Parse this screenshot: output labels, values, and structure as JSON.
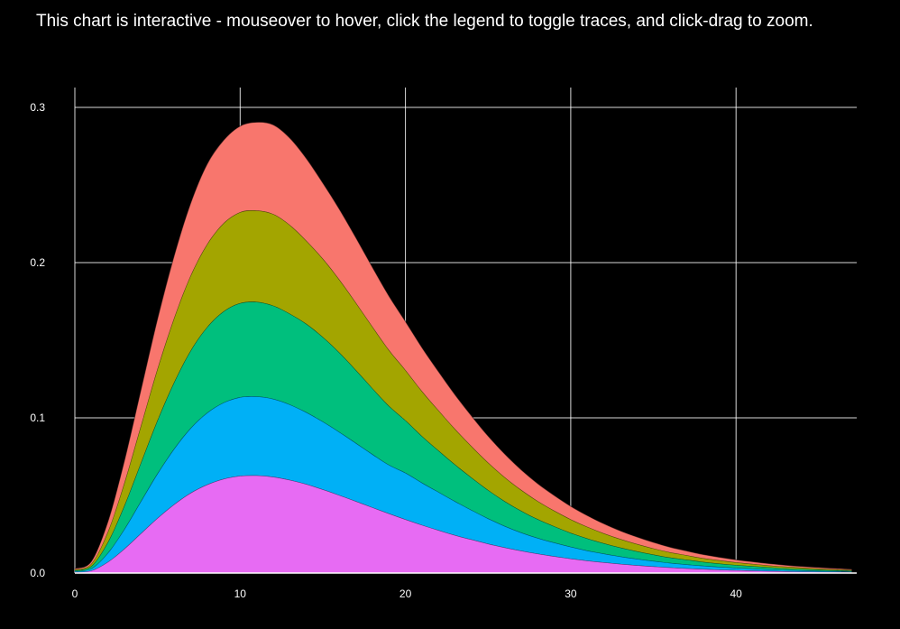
{
  "chart_data": {
    "type": "area",
    "mode": "stacked",
    "title": "This chart is interactive - mouseover to hover, click the legend to toggle traces, and click-drag to zoom.",
    "xlabel": "",
    "ylabel": "",
    "legend": "hidden",
    "grid": true,
    "background": "#000000",
    "grid_color": "#ffffff",
    "text_color": "#ffffff",
    "outline_color": "rgba(0,0,0,0.55)",
    "xlim": [
      0,
      47.3
    ],
    "ylim": [
      0,
      0.3128
    ],
    "x_ticks": [
      0,
      10,
      20,
      30,
      40
    ],
    "x_tick_labels": [
      "0",
      "10",
      "20",
      "30",
      "40"
    ],
    "y_ticks": [
      0,
      0.1,
      0.2,
      0.3
    ],
    "y_tick_labels": [
      "0.0",
      "0.1",
      "0.2",
      "0.3"
    ],
    "x": [
      0,
      1,
      2,
      3,
      4,
      5,
      6,
      7,
      8,
      9,
      10,
      11,
      12,
      13,
      14,
      15,
      16,
      17,
      18,
      19,
      20,
      21,
      22,
      23,
      24,
      25,
      26,
      27,
      28,
      29,
      30,
      31,
      32,
      33,
      34,
      35,
      36,
      37,
      38,
      39,
      40,
      41,
      42,
      43,
      44,
      45,
      46,
      47
    ],
    "series": [
      {
        "name": "violet",
        "color": "#E76BF3",
        "values": [
          0.0006,
          0.0016,
          0.0072,
          0.0157,
          0.0256,
          0.0354,
          0.0442,
          0.0516,
          0.057,
          0.0607,
          0.0626,
          0.0629,
          0.062,
          0.06,
          0.0573,
          0.0539,
          0.0502,
          0.0463,
          0.0423,
          0.0384,
          0.0346,
          0.031,
          0.0276,
          0.0244,
          0.0216,
          0.0189,
          0.0165,
          0.0144,
          0.0125,
          0.0108,
          0.0093,
          0.008,
          0.0069,
          0.0059,
          0.005,
          0.0043,
          0.0036,
          0.0031,
          0.0026,
          0.0022,
          0.0019,
          0.0016,
          0.0013,
          0.0011,
          0.0009,
          0.0008,
          0.0007,
          0.0006
        ]
      },
      {
        "name": "blue",
        "color": "#00B0F6",
        "values": [
          0.0005,
          0.0013,
          0.0058,
          0.0127,
          0.0207,
          0.0287,
          0.0358,
          0.0417,
          0.0462,
          0.0491,
          0.0507,
          0.0509,
          0.0502,
          0.0486,
          0.0463,
          0.0437,
          0.0407,
          0.0375,
          0.0343,
          0.0313,
          0.03,
          0.0272,
          0.0246,
          0.0218,
          0.019,
          0.0163,
          0.0138,
          0.0117,
          0.0101,
          0.0088,
          0.0076,
          0.0065,
          0.0056,
          0.0048,
          0.0041,
          0.0035,
          0.0029,
          0.0025,
          0.0021,
          0.0018,
          0.0015,
          0.0013,
          0.0011,
          0.0009,
          0.0008,
          0.0006,
          0.0005,
          0.0004
        ]
      },
      {
        "name": "green",
        "color": "#00BF7D",
        "values": [
          0.0006,
          0.0016,
          0.007,
          0.0152,
          0.0248,
          0.0343,
          0.0428,
          0.0499,
          0.0552,
          0.0588,
          0.0606,
          0.0609,
          0.0601,
          0.0585,
          0.057,
          0.0545,
          0.0512,
          0.047,
          0.0425,
          0.038,
          0.0338,
          0.03,
          0.0267,
          0.0237,
          0.0209,
          0.0183,
          0.016,
          0.014,
          0.0121,
          0.0105,
          0.009,
          0.0078,
          0.0067,
          0.0057,
          0.0049,
          0.0041,
          0.0035,
          0.003,
          0.0025,
          0.0021,
          0.0018,
          0.0015,
          0.0013,
          0.0011,
          0.0009,
          0.0008,
          0.0006,
          0.0005
        ]
      },
      {
        "name": "olive",
        "color": "#A3A500",
        "values": [
          0.0006,
          0.0015,
          0.0067,
          0.0147,
          0.0239,
          0.0332,
          0.0414,
          0.0483,
          0.0534,
          0.0568,
          0.0586,
          0.0589,
          0.059,
          0.0572,
          0.0536,
          0.0505,
          0.047,
          0.0434,
          0.0397,
          0.036,
          0.0324,
          0.029,
          0.0259,
          0.0229,
          0.0202,
          0.0177,
          0.0155,
          0.0135,
          0.0117,
          0.0101,
          0.0087,
          0.0075,
          0.0064,
          0.0055,
          0.0047,
          0.004,
          0.0034,
          0.0029,
          0.0024,
          0.0021,
          0.0017,
          0.0015,
          0.0012,
          0.001,
          0.0009,
          0.0007,
          0.0006,
          0.0005
        ]
      },
      {
        "name": "salmon",
        "color": "#F8766D",
        "values": [
          0.0006,
          0.0015,
          0.0065,
          0.0142,
          0.0231,
          0.032,
          0.04,
          0.0466,
          0.0516,
          0.0535,
          0.0555,
          0.0569,
          0.0575,
          0.056,
          0.053,
          0.0488,
          0.0454,
          0.0419,
          0.0383,
          0.0348,
          0.0313,
          0.0281,
          0.025,
          0.0221,
          0.0195,
          0.0171,
          0.015,
          0.013,
          0.0113,
          0.0098,
          0.0084,
          0.0073,
          0.0062,
          0.0053,
          0.0046,
          0.0039,
          0.0033,
          0.0028,
          0.0024,
          0.002,
          0.0017,
          0.0014,
          0.0012,
          0.001,
          0.0008,
          0.0007,
          0.0006,
          0.0005
        ]
      }
    ]
  }
}
